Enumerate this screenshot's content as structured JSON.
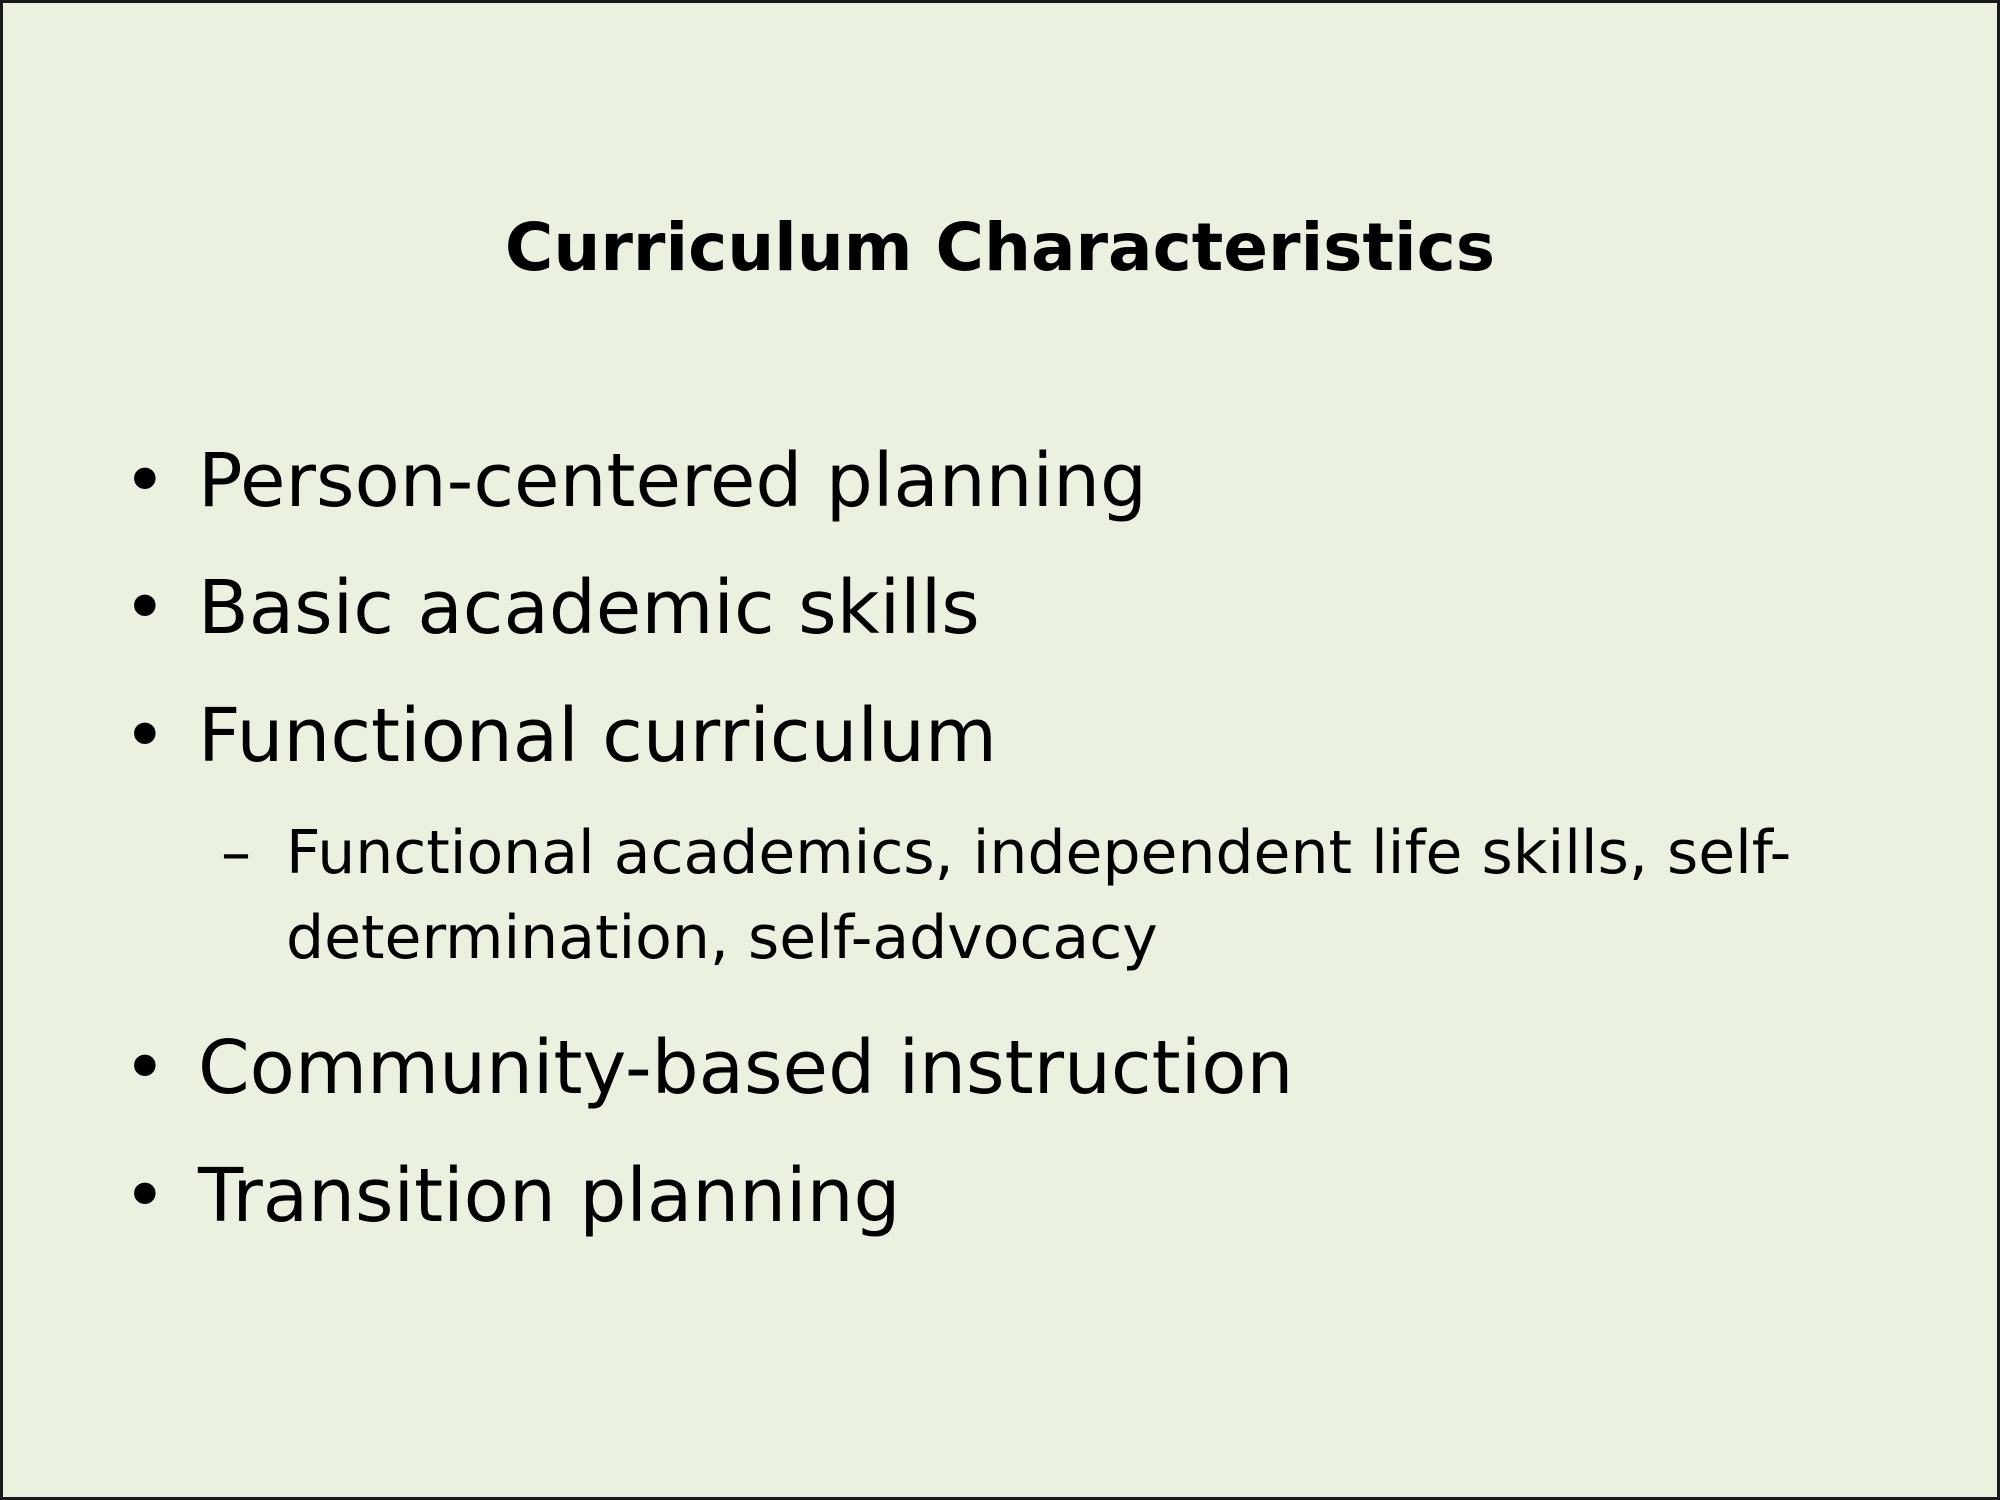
{
  "slide": {
    "title": "Curriculum Characteristics",
    "bullet_glyph": "•",
    "sub_bullet_glyph": "–",
    "items": [
      {
        "text": "Person-centered planning"
      },
      {
        "text": "Basic academic skills"
      },
      {
        "text": "Functional curriculum"
      },
      {
        "text": "Community-based instruction"
      },
      {
        "text": "Transition planning"
      }
    ],
    "sub_items": [
      {
        "text": "Functional academics, independent life skills, self-determination, self-advocacy"
      }
    ]
  },
  "colors": {
    "background": "#ebf1df",
    "border": "#1a1a1a",
    "text": "#000000"
  }
}
